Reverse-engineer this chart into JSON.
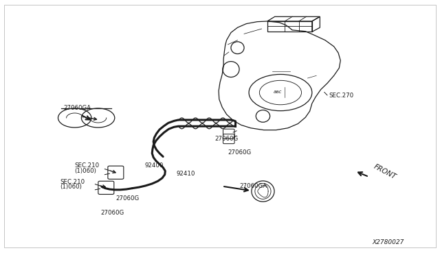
{
  "bg_color": "#ffffff",
  "line_color": "#1a1a1a",
  "text_color": "#1a1a1a",
  "figsize": [
    6.4,
    3.72
  ],
  "dpi": 100,
  "labels": {
    "sec270": "SEC.270",
    "27060G_top": "27060G",
    "27060G_mid": "27060G",
    "27060GA_topleft": "27060GA",
    "27060GA_botright": "27060GA",
    "27060G_bot1": "27060G",
    "27060G_bot2": "27060G",
    "92400": "92400",
    "92410": "92410",
    "sec210_top_a": "SEC.210",
    "sec210_top_b": "(1)060)",
    "sec210_bot_a": "SEC.210",
    "sec210_bot_b": "(1)060)",
    "front": "FRONT",
    "diagram_num": "X2780027"
  }
}
